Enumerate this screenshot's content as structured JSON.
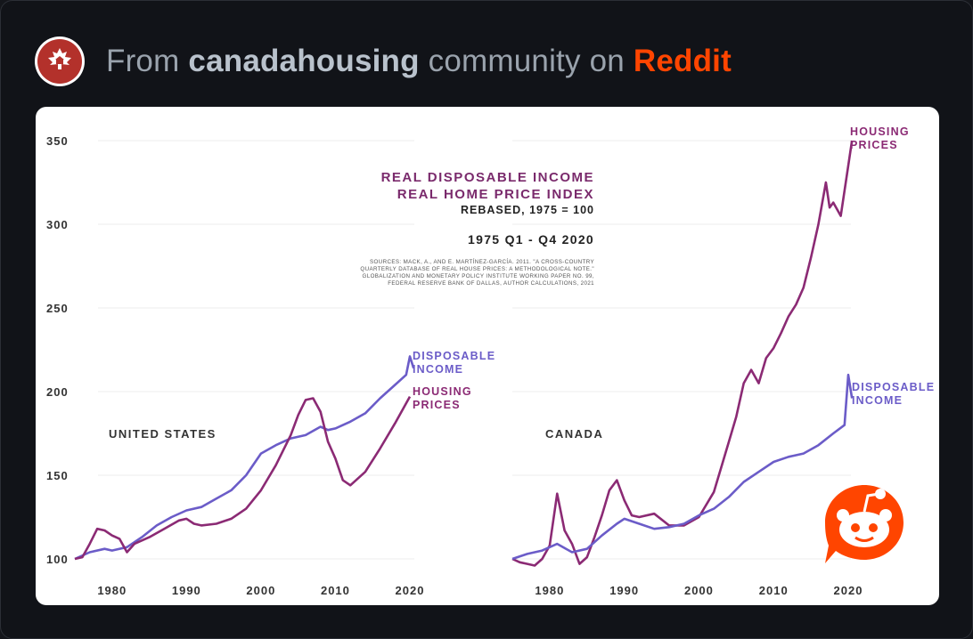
{
  "header": {
    "prefix": "From",
    "community": "canadahousing",
    "middle": "community on",
    "platform": "Reddit"
  },
  "colors": {
    "background": "#111318",
    "card": "#ffffff",
    "housing": "#8b2a74",
    "income": "#6b5cc8",
    "reddit": "#ff4500",
    "subreddit_icon": "#b3312b"
  },
  "icons": {
    "subreddit": "maple-leaf-house-icon",
    "watermark": "reddit-snoo-icon"
  },
  "chart_data": {
    "type": "line",
    "title": "REAL DISPOSABLE INCOME",
    "title_line2": "REAL HOME PRICE INDEX",
    "subtitle": "REBASED, 1975 = 100",
    "period": "1975 Q1 - Q4 2020",
    "sources": [
      "SOURCES: MACK, A., AND E. MARTÍNEZ-GARCÍA. 2011. \"A CROSS-COUNTRY",
      "QUARTERLY DATABASE OF REAL HOUSE PRICES: A METHODOLOGICAL NOTE.\"",
      "GLOBALIZATION AND MONETARY POLICY INSTITUTE WORKING PAPER NO. 99,",
      "FEDERAL RESERVE BANK OF DALLAS, AUTHOR CALCULATIONS, 2021"
    ],
    "ylim": [
      100,
      350
    ],
    "yticks": [
      100,
      150,
      200,
      250,
      300,
      350
    ],
    "xlim": [
      1975,
      2020
    ],
    "xticks": [
      1980,
      1990,
      2000,
      2010,
      2020
    ],
    "panels": [
      {
        "name": "UNITED STATES",
        "series": [
          {
            "name": "DISPOSABLE INCOME",
            "label_lines": [
              "DISPOSABLE",
              "INCOME"
            ],
            "color": "#6b5cc8",
            "x": [
              1975,
              1977,
              1979,
              1980,
              1982,
              1984,
              1986,
              1988,
              1990,
              1992,
              1994,
              1996,
              1998,
              2000,
              2002,
              2004,
              2006,
              2008,
              2009,
              2010,
              2012,
              2014,
              2016,
              2018,
              2019.5,
              2020,
              2020.5
            ],
            "values": [
              100,
              104,
              106,
              105,
              107,
              113,
              120,
              125,
              129,
              131,
              136,
              141,
              150,
              163,
              168,
              172,
              174,
              179,
              177,
              178,
              182,
              187,
              196,
              204,
              210,
              221,
              214
            ]
          },
          {
            "name": "HOUSING PRICES",
            "label_lines": [
              "HOUSING",
              "PRICES"
            ],
            "color": "#8b2a74",
            "x": [
              1975,
              1976,
              1977,
              1978,
              1979,
              1980,
              1981,
              1982,
              1983,
              1985,
              1987,
              1989,
              1990,
              1991,
              1992,
              1994,
              1996,
              1998,
              2000,
              2002,
              2004,
              2005,
              2006,
              2007,
              2008,
              2009,
              2010,
              2011,
              2012,
              2014,
              2016,
              2018,
              2020
            ],
            "values": [
              100,
              101,
              109,
              118,
              117,
              114,
              112,
              104,
              109,
              113,
              118,
              123,
              124,
              121,
              120,
              121,
              124,
              130,
              141,
              156,
              174,
              186,
              195,
              196,
              188,
              170,
              160,
              147,
              144,
              152,
              166,
              181,
              197
            ]
          }
        ]
      },
      {
        "name": "CANADA",
        "series": [
          {
            "name": "HOUSING PRICES",
            "label_lines": [
              "HOUSING",
              "PRICES"
            ],
            "color": "#8b2a74",
            "x": [
              1975,
              1976,
              1977,
              1978,
              1979,
              1980,
              1981,
              1982,
              1983,
              1984,
              1985,
              1986,
              1987,
              1988,
              1989,
              1990,
              1991,
              1992,
              1994,
              1996,
              1998,
              2000,
              2002,
              2003,
              2004,
              2005,
              2006,
              2007,
              2008,
              2009,
              2010,
              2011,
              2012,
              2013,
              2014,
              2015,
              2016,
              2017,
              2017.5,
              2018,
              2019,
              2020,
              2020.5
            ],
            "values": [
              100,
              98,
              97,
              96,
              100,
              108,
              139,
              117,
              109,
              97,
              101,
              113,
              126,
              141,
              147,
              135,
              126,
              125,
              127,
              120,
              120,
              125,
              140,
              155,
              170,
              185,
              205,
              213,
              205,
              220,
              226,
              235,
              245,
              252,
              262,
              280,
              300,
              325,
              310,
              313,
              305,
              335,
              350
            ]
          },
          {
            "name": "DISPOSABLE INCOME",
            "label_lines": [
              "DISPOSABLE",
              "INCOME"
            ],
            "color": "#6b5cc8",
            "x": [
              1975,
              1977,
              1979,
              1981,
              1983,
              1985,
              1987,
              1989,
              1990,
              1992,
              1994,
              1996,
              1998,
              2000,
              2002,
              2004,
              2006,
              2008,
              2010,
              2012,
              2014,
              2016,
              2018,
              2019.5,
              2020,
              2020.5
            ],
            "values": [
              100,
              103,
              105,
              109,
              104,
              106,
              114,
              121,
              124,
              121,
              118,
              119,
              121,
              126,
              130,
              137,
              146,
              152,
              158,
              161,
              163,
              168,
              175,
              180,
              210,
              196
            ]
          }
        ]
      }
    ]
  }
}
